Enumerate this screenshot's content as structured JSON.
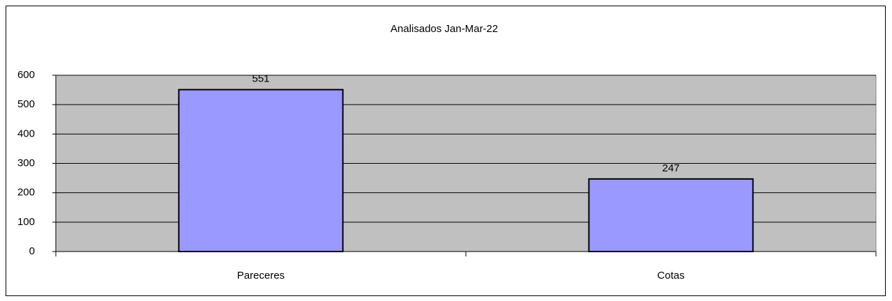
{
  "chart_data": {
    "type": "bar",
    "title": "Analisados Jan-Mar-22",
    "categories": [
      "Pareceres",
      "Cotas"
    ],
    "values": [
      551,
      247
    ],
    "color": "#9999ff",
    "ylim": [
      0,
      600
    ],
    "yticks": [
      0,
      100,
      200,
      300,
      400,
      500,
      600
    ],
    "grid": true,
    "plot_background": "#c0c0c0"
  }
}
